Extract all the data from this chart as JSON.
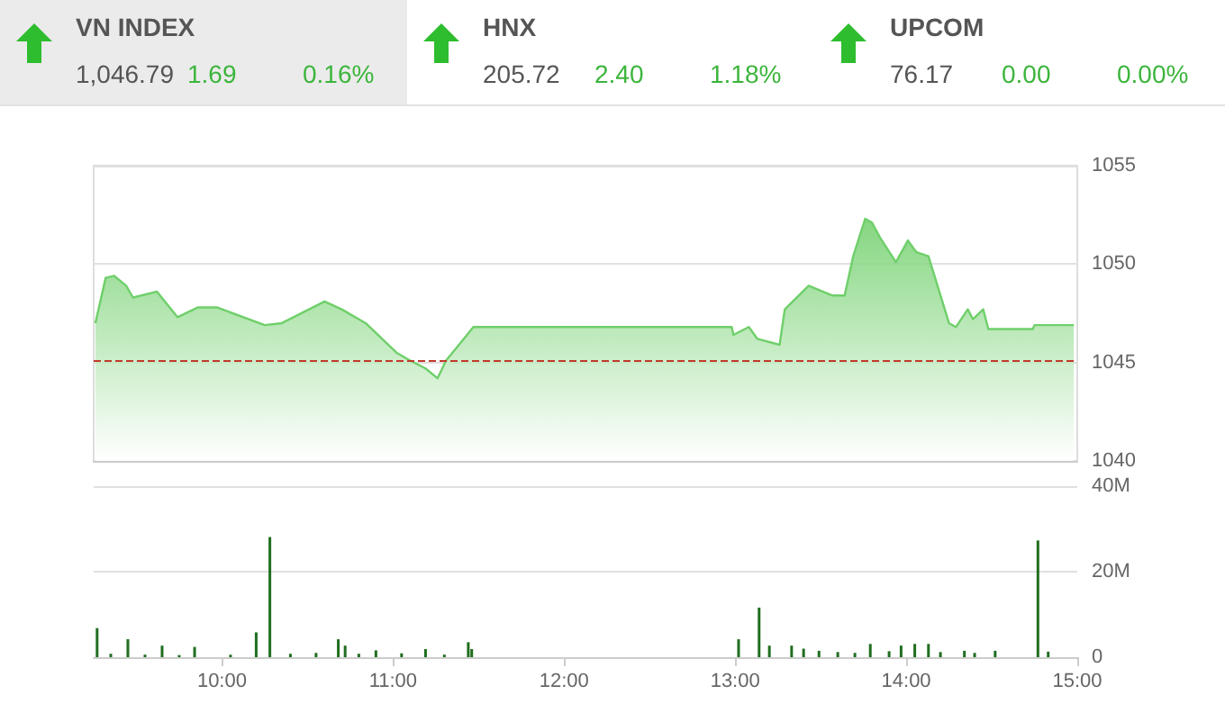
{
  "chart_data": [
    {
      "type": "other",
      "annotations": [
        "VN INDEX",
        "1,046.79",
        "1.69",
        "0.16%",
        "HNX",
        "205.72",
        "2.40",
        "1.18%",
        "UPCOM",
        "76.17",
        "0.00",
        "0.00%"
      ]
    },
    {
      "type": "area",
      "color": "#6fcf6a",
      "x": [
        9.26,
        9.32,
        9.37,
        9.44,
        9.48,
        9.62,
        9.74,
        9.86,
        9.97,
        10.25,
        10.35,
        10.6,
        10.7,
        10.84,
        11.02,
        11.1,
        11.19,
        11.26,
        11.31,
        11.46,
        11.47,
        12.98,
        12.99,
        13.08,
        13.13,
        13.26,
        13.29,
        13.43,
        13.57,
        13.64,
        13.69,
        13.76,
        13.8,
        13.85,
        13.94,
        14.01,
        14.06,
        14.13,
        14.25,
        14.29,
        14.36,
        14.39,
        14.45,
        14.48,
        14.74,
        14.75,
        14.98
      ],
      "values": [
        1047.0,
        1049.3,
        1049.4,
        1048.9,
        1048.3,
        1048.6,
        1047.3,
        1047.8,
        1047.8,
        1046.9,
        1047.0,
        1048.1,
        1047.7,
        1047.0,
        1045.5,
        1045.1,
        1044.7,
        1044.2,
        1045.1,
        1046.7,
        1046.8,
        1046.8,
        1046.4,
        1046.8,
        1046.2,
        1045.9,
        1047.7,
        1048.9,
        1048.4,
        1048.4,
        1050.4,
        1052.3,
        1052.1,
        1051.3,
        1050.1,
        1051.2,
        1050.6,
        1050.4,
        1047.0,
        1046.8,
        1047.7,
        1047.2,
        1047.7,
        1046.7,
        1046.7,
        1046.9,
        1046.9
      ],
      "xlim": [
        9.25,
        15
      ],
      "ylim": [
        1040,
        1055
      ],
      "yticks": [
        1040,
        1045,
        1050,
        1055
      ],
      "grid": "y",
      "tick_labels": "y",
      "ref_lines": [
        {
          "axis": "y",
          "value": 1045.1,
          "color": "#c0392b",
          "line_style": "dashed"
        }
      ]
    },
    {
      "type": "bar",
      "color": "#1f6e1f",
      "x": [
        9.27,
        9.35,
        9.45,
        9.55,
        9.65,
        9.75,
        9.84,
        10.05,
        10.2,
        10.28,
        10.4,
        10.55,
        10.68,
        10.72,
        10.8,
        10.9,
        11.05,
        11.19,
        11.3,
        11.44,
        11.46,
        13.02,
        13.14,
        13.2,
        13.33,
        13.4,
        13.49,
        13.6,
        13.7,
        13.79,
        13.9,
        13.97,
        14.05,
        14.13,
        14.2,
        14.34,
        14.4,
        14.52,
        14.77,
        14.83
      ],
      "values": [
        6.8,
        0.8,
        4.2,
        0.6,
        2.7,
        0.5,
        2.4,
        0.6,
        5.8,
        28.1,
        0.8,
        1.0,
        4.2,
        2.7,
        0.8,
        1.6,
        0.9,
        1.9,
        0.6,
        3.5,
        1.9,
        4.2,
        11.6,
        2.7,
        2.7,
        2.0,
        1.5,
        1.2,
        1.0,
        3.1,
        1.4,
        2.7,
        3.1,
        3.1,
        1.2,
        1.5,
        1.0,
        1.5,
        27.3,
        1.3
      ],
      "xlim": [
        9.25,
        15
      ],
      "xticks": [
        {
          "value": 10,
          "label": "10:00"
        },
        {
          "value": 11,
          "label": "11:00"
        },
        {
          "value": 12,
          "label": "12:00"
        },
        {
          "value": 13,
          "label": "13:00"
        },
        {
          "value": 14,
          "label": "14:00"
        },
        {
          "value": 15,
          "label": "15:00"
        }
      ],
      "ylim": [
        0,
        40
      ],
      "yticks": [
        0,
        {
          "value": 20,
          "label": "20M"
        },
        {
          "value": 40,
          "label": "40M"
        }
      ],
      "grid": "y"
    }
  ]
}
